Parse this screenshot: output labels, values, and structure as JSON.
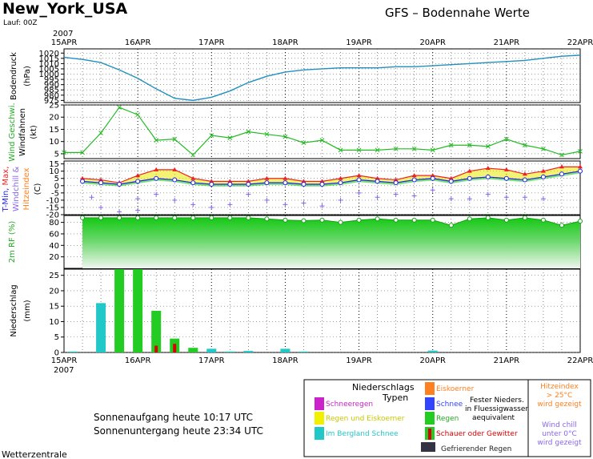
{
  "header": {
    "location": "New_York_USA",
    "run": "Lauf: 00Z",
    "model_title": "GFS  –  Bodennahe Werte",
    "footer_credit": "Wetterzentrale"
  },
  "axis": {
    "year": "2007",
    "date_ticks": [
      "15APR",
      "16APR",
      "17APR",
      "18APR",
      "19APR",
      "20APR",
      "21APR",
      "22APR"
    ]
  },
  "sun": {
    "sunrise": "Sonnenaufgang heute 10:17 UTC",
    "sunset": "Sonnenuntergang heute 23:34 UTC"
  },
  "legend": {
    "title_line1": "Niederschlags",
    "title_line2": "Typen",
    "items": [
      {
        "label": "Schneeregen",
        "color": "#cc22cc",
        "text_color": "#cc22cc"
      },
      {
        "label": "Regen und Eiskoerner",
        "color": "#f0f000",
        "text_color": "#c8c800"
      },
      {
        "label": "Im Bergland Schnee",
        "color": "#22c8c8",
        "text_color": "#22c8c8"
      },
      {
        "label": "Eiskoerner",
        "color": "#ff8020",
        "text_color": "#ff8020"
      },
      {
        "label": "Schnee",
        "color": "#3344ff",
        "text_color": "#3344ff"
      },
      {
        "label": "Regen",
        "color": "#22cc22",
        "text_color": "#22aa22"
      },
      {
        "label": "Schauer oder Gewitter",
        "color": "#dd0000",
        "text_color": "#dd0000"
      },
      {
        "label": "Gefrierender Regen",
        "color": "#333344",
        "text_color": "#222222"
      }
    ],
    "solid_note": [
      "Fester Nieders.",
      "in Fluessigwasser",
      "aequivalent"
    ],
    "heat_note": [
      "Hitzeindex",
      "> 25°C",
      "wird gezeigt"
    ],
    "chill_note": [
      "Wind chill",
      "unter 0°C",
      "wird gezeigt"
    ]
  },
  "colors": {
    "pressure": "#2090c0",
    "wind": "#22bb22",
    "tmax": "#ee2222",
    "tmin": "#2222ee",
    "windchill": "#8866ee",
    "heat_fill": "#e8e800",
    "rh_green": "#22cc22",
    "rain": "#22cc22",
    "mountain_snow": "#22c8c8",
    "showers": "#dd0000"
  },
  "chart_data": [
    {
      "type": "line",
      "panel": "pressure",
      "ylabel": "Bodendruck (hPa)",
      "yticks": [
        975,
        980,
        985,
        990,
        995,
        1000,
        1005,
        1010,
        1015,
        1020
      ],
      "ylim": [
        973,
        1024
      ],
      "x_hours": [
        0,
        6,
        12,
        18,
        24,
        30,
        36,
        42,
        48,
        54,
        60,
        66,
        72,
        78,
        84,
        90,
        96,
        102,
        108,
        114,
        120,
        126,
        132,
        138,
        144,
        150,
        156,
        162,
        168
      ],
      "values": [
        1016,
        1014,
        1011,
        1004,
        996,
        986,
        977,
        975,
        978,
        984,
        992,
        998,
        1002,
        1004,
        1005,
        1006,
        1006,
        1006,
        1007,
        1007,
        1008,
        1009,
        1010,
        1011,
        1012,
        1013,
        1015,
        1017,
        1018
      ]
    },
    {
      "type": "line",
      "panel": "wind",
      "ylabel": "Wind Geschwi. Windfahnen (kt)",
      "yticks": [
        5,
        10,
        15,
        20,
        25
      ],
      "ylim": [
        3,
        25
      ],
      "x_hours": [
        0,
        6,
        12,
        18,
        24,
        30,
        36,
        42,
        48,
        54,
        60,
        66,
        72,
        78,
        84,
        90,
        96,
        102,
        108,
        114,
        120,
        126,
        132,
        138,
        144,
        150,
        156,
        162,
        168
      ],
      "values": [
        5.5,
        5.5,
        13.5,
        24,
        21,
        10.5,
        11,
        4.5,
        12.5,
        11.5,
        14,
        13,
        12,
        9.5,
        10.5,
        6.5,
        6.5,
        6.5,
        7,
        7,
        6.5,
        8.5,
        8.5,
        8,
        11,
        8.5,
        7,
        4.5,
        6
      ]
    },
    {
      "type": "line",
      "panel": "temperature",
      "ylabel": "T-Min, Max, Windchill & Hitzeindex (C)",
      "yticks": [
        -20,
        -15,
        -10,
        -5,
        0,
        5,
        10,
        15
      ],
      "ylim": [
        -20,
        17
      ],
      "x_hours": [
        6,
        12,
        18,
        24,
        30,
        36,
        42,
        48,
        54,
        60,
        66,
        72,
        78,
        84,
        90,
        96,
        102,
        108,
        114,
        120,
        126,
        132,
        138,
        144,
        150,
        156,
        162,
        168
      ],
      "series": [
        {
          "name": "T-Max",
          "values": [
            5,
            4,
            2,
            7,
            11,
            11,
            5,
            3,
            3,
            3,
            5,
            5,
            3,
            3,
            5,
            7,
            5,
            4,
            7,
            7,
            5,
            10,
            12,
            11,
            8,
            10,
            13,
            13
          ]
        },
        {
          "name": "T-Min",
          "values": [
            3,
            2,
            1,
            3,
            5,
            4,
            2,
            1,
            1,
            1,
            2,
            2,
            1,
            1,
            2,
            4,
            3,
            2,
            4,
            5,
            3,
            5,
            6,
            5,
            4,
            6,
            8,
            10
          ]
        }
      ],
      "windchill_points": [
        {
          "x": 9,
          "y": -8
        },
        {
          "x": 12,
          "y": -15
        },
        {
          "x": 18,
          "y": -18
        },
        {
          "x": 24,
          "y": -17
        },
        {
          "x": 24,
          "y": -9
        },
        {
          "x": 30,
          "y": -6
        },
        {
          "x": 36,
          "y": -10
        },
        {
          "x": 42,
          "y": -13
        },
        {
          "x": 48,
          "y": -15
        },
        {
          "x": 54,
          "y": -13
        },
        {
          "x": 60,
          "y": -6
        },
        {
          "x": 66,
          "y": -10
        },
        {
          "x": 72,
          "y": -13
        },
        {
          "x": 78,
          "y": -12
        },
        {
          "x": 84,
          "y": -14
        },
        {
          "x": 90,
          "y": -10
        },
        {
          "x": 96,
          "y": -5
        },
        {
          "x": 102,
          "y": -8
        },
        {
          "x": 108,
          "y": -6
        },
        {
          "x": 114,
          "y": -7
        },
        {
          "x": 120,
          "y": -3
        },
        {
          "x": 126,
          "y": -9
        },
        {
          "x": 132,
          "y": -9
        },
        {
          "x": 138,
          "y": -6
        },
        {
          "x": 144,
          "y": -8
        },
        {
          "x": 150,
          "y": -8
        },
        {
          "x": 156,
          "y": -9
        }
      ]
    },
    {
      "type": "area",
      "panel": "humidity",
      "ylabel": "2m RF (%)",
      "yticks": [
        20,
        40,
        60,
        80
      ],
      "ylim": [
        0,
        92
      ],
      "x_hours": [
        6,
        12,
        18,
        24,
        30,
        36,
        42,
        48,
        54,
        60,
        66,
        72,
        78,
        84,
        90,
        96,
        102,
        108,
        114,
        120,
        126,
        132,
        138,
        144,
        150,
        156,
        162,
        168
      ],
      "values": [
        88,
        88,
        88,
        88,
        88,
        88,
        88,
        88,
        88,
        88,
        86,
        84,
        83,
        84,
        80,
        84,
        86,
        84,
        84,
        84,
        75,
        86,
        88,
        84,
        88,
        84,
        75,
        82
      ]
    },
    {
      "type": "bar",
      "panel": "precipitation",
      "ylabel": "Niederschlag (mm)",
      "yticks": [
        0,
        5,
        10,
        15,
        20,
        25
      ],
      "ylim": [
        0,
        27
      ],
      "x_hours": [
        3,
        12,
        18,
        24,
        30,
        36,
        42,
        48,
        54,
        60,
        66,
        72,
        78,
        84,
        90,
        96,
        102,
        108,
        114,
        120,
        126,
        132,
        138,
        144,
        150,
        156,
        162,
        168
      ],
      "series": [
        {
          "name": "Im Bergland Schnee",
          "values": [
            0.3,
            16,
            0,
            0,
            0,
            0,
            0,
            1.2,
            0.3,
            0.5,
            0,
            1.2,
            0.3,
            0,
            0,
            0,
            0,
            0,
            0,
            0.6,
            0,
            0,
            0,
            0,
            0,
            0,
            0,
            0
          ]
        },
        {
          "name": "Regen",
          "values": [
            0,
            0,
            27,
            27,
            13.5,
            4.5,
            1.5,
            0,
            0,
            0,
            0,
            0,
            0,
            0,
            0,
            0,
            0,
            0,
            0,
            0,
            0,
            0,
            0,
            0,
            0,
            0,
            0,
            0
          ]
        },
        {
          "name": "Schauer oder Gewitter",
          "values": [
            0,
            0,
            0,
            0,
            2.2,
            2.8,
            0,
            0,
            0,
            0,
            0,
            0,
            0,
            0,
            0,
            0,
            0,
            0,
            0,
            0,
            0,
            0,
            0,
            0,
            0,
            0,
            0,
            0
          ]
        }
      ]
    }
  ]
}
